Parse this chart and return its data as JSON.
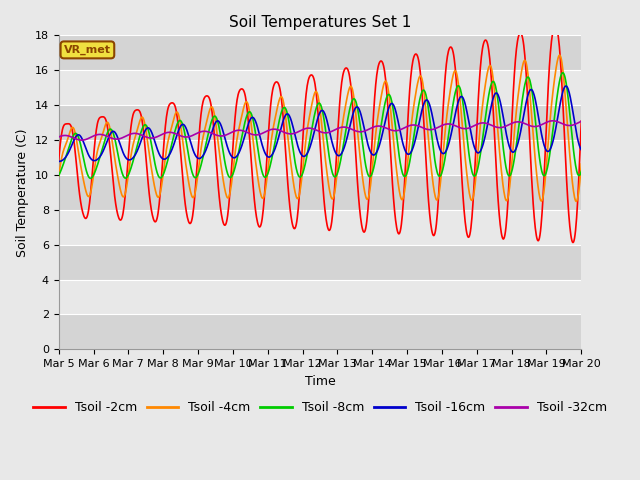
{
  "title": "Soil Temperatures Set 1",
  "xlabel": "Time",
  "ylabel": "Soil Temperature (C)",
  "annotation": "VR_met",
  "ylim": [
    0,
    18
  ],
  "yticks": [
    0,
    2,
    4,
    6,
    8,
    10,
    12,
    14,
    16,
    18
  ],
  "xlim_days": [
    0,
    15
  ],
  "x_tick_labels": [
    "Mar 5",
    "Mar 6",
    "Mar 7",
    "Mar 8",
    "Mar 9",
    "Mar 10",
    "Mar 11",
    "Mar 12",
    "Mar 13",
    "Mar 14",
    "Mar 15",
    "Mar 16",
    "Mar 17",
    "Mar 18",
    "Mar 19",
    "Mar 20"
  ],
  "series_colors": {
    "Tsoil -2cm": "#ff0000",
    "Tsoil -4cm": "#ff8800",
    "Tsoil -8cm": "#00cc00",
    "Tsoil -16cm": "#0000cc",
    "Tsoil -32cm": "#aa00aa"
  },
  "lw": 1.2,
  "figsize": [
    6.4,
    4.8
  ],
  "dpi": 100,
  "title_fontsize": 11,
  "axis_label_fontsize": 9,
  "tick_fontsize": 8,
  "legend_fontsize": 9,
  "bg_color_light": "#e8e8e8",
  "bg_color_dark": "#d4d4d4",
  "band_colors": [
    "#d4d4d4",
    "#e8e8e8",
    "#d4d4d4",
    "#e8e8e8",
    "#d4d4d4",
    "#e8e8e8",
    "#d4d4d4",
    "#e8e8e8",
    "#d4d4d4"
  ]
}
